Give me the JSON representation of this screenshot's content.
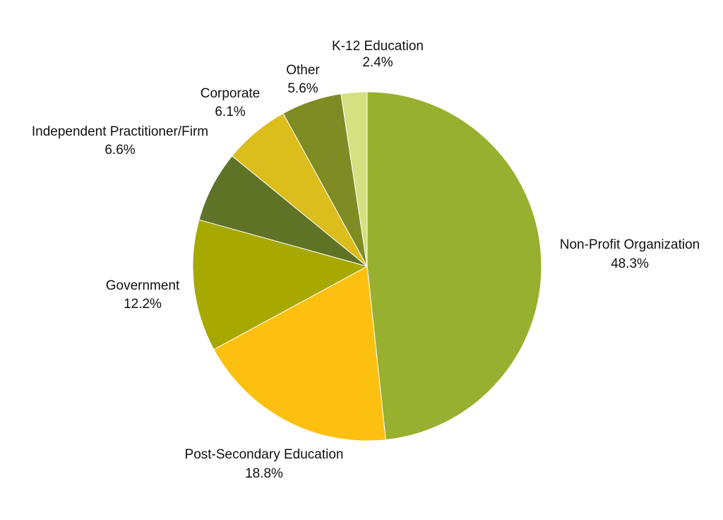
{
  "chart_data": {
    "type": "pie",
    "start": "top",
    "direction": "clockwise",
    "legend": "none",
    "slices": [
      {
        "label": "Non-Profit Organization",
        "value": 48.3,
        "value_label": "48.3%",
        "color": "#98b02f"
      },
      {
        "label": "Post-Secondary Education",
        "value": 18.8,
        "value_label": "18.8%",
        "color": "#fdc010"
      },
      {
        "label": "Government",
        "value": 12.2,
        "value_label": "12.2%",
        "color": "#a7a800"
      },
      {
        "label": "Independent Practitioner/Firm",
        "value": 6.6,
        "value_label": "6.6%",
        "color": "#5f7326"
      },
      {
        "label": "Corporate",
        "value": 6.1,
        "value_label": "6.1%",
        "color": "#dbbd1b"
      },
      {
        "label": "Other",
        "value": 5.6,
        "value_label": "5.6%",
        "color": "#7e8c23"
      },
      {
        "label": "K-12 Education",
        "value": 2.4,
        "value_label": "2.4%",
        "color": "#d5e080"
      }
    ]
  }
}
